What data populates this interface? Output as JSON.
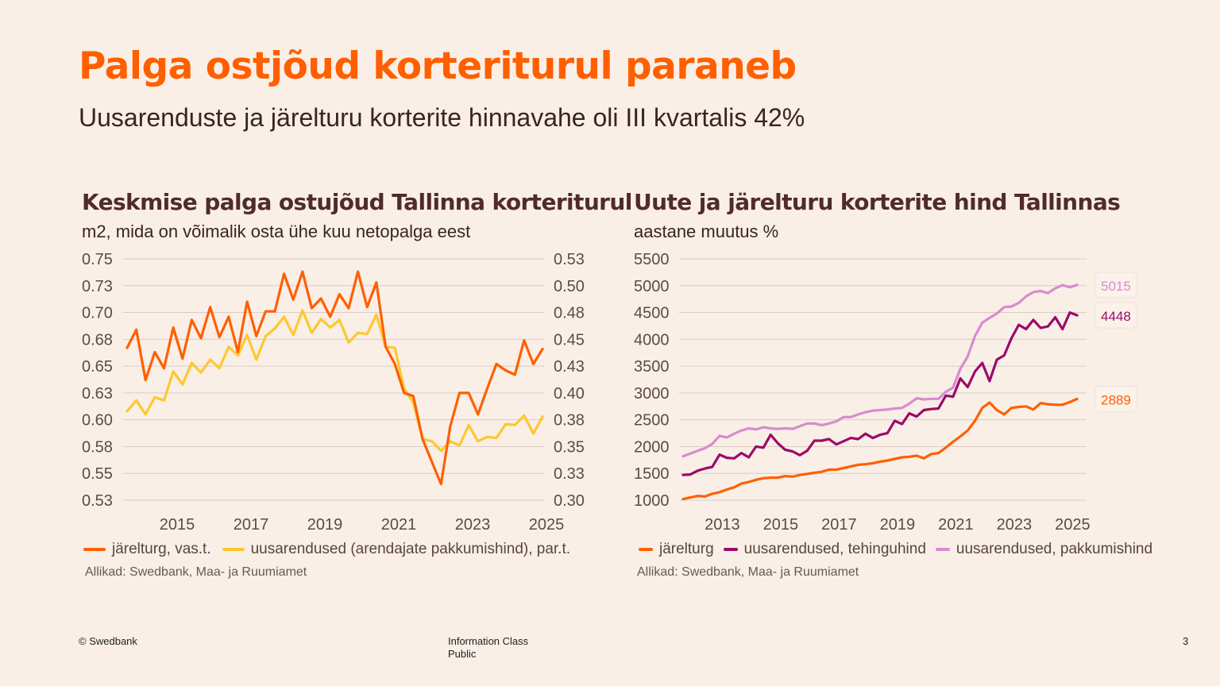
{
  "slide": {
    "title": "Palga ostjõud korteriturul paraneb",
    "subtitle": "Uusarenduste ja järelturu korterite hinnavahe oli III kvartalis 42%",
    "footer_left": "© Swedbank",
    "footer_center_line1": "Information Class",
    "footer_center_line2": "Public",
    "page_number": "3"
  },
  "colors": {
    "title": "#ff5f00",
    "jarelturg": "#ff5f00",
    "uusarendused_left": "#fdc82f",
    "tehinguhind": "#9b0a6b",
    "pakkumishind": "#d98bd0"
  },
  "chart_data": [
    {
      "type": "line",
      "title": "Keskmise palga ostujõud Tallinna korterituruI",
      "subtitle": "m2, mida on võimalik osta ühe kuu netopalga eest",
      "source": "Allikad: Swedbank, Maa- ja Ruumiamet",
      "frequency": "quarterly",
      "grid": true,
      "legend_position": "bottom",
      "x_ticks": [
        "2015",
        "2017",
        "2019",
        "2021",
        "2023",
        "2025"
      ],
      "y_left": {
        "ylim": [
          0.525,
          0.75
        ],
        "ticks": [
          0.525,
          0.55,
          0.575,
          0.6,
          0.625,
          0.65,
          0.675,
          0.7,
          0.725,
          0.75
        ],
        "tick_labels": [
          "0.53",
          "0.55",
          "0.58",
          "0.60",
          "0.63",
          "0.65",
          "0.68",
          "0.70",
          "0.73",
          "0.75"
        ]
      },
      "y_right": {
        "ylim": [
          0.3,
          0.525
        ],
        "ticks": [
          0.3,
          0.325,
          0.35,
          0.375,
          0.4,
          0.425,
          0.45,
          0.475,
          0.5,
          0.525
        ],
        "tick_labels": [
          "0.30",
          "0.33",
          "0.35",
          "0.38",
          "0.40",
          "0.43",
          "0.45",
          "0.48",
          "0.50",
          "0.53"
        ]
      },
      "x": [
        "2014Q1",
        "2014Q2",
        "2014Q3",
        "2014Q4",
        "2015Q1",
        "2015Q2",
        "2015Q3",
        "2015Q4",
        "2016Q1",
        "2016Q2",
        "2016Q3",
        "2016Q4",
        "2017Q1",
        "2017Q2",
        "2017Q3",
        "2017Q4",
        "2018Q1",
        "2018Q2",
        "2018Q3",
        "2018Q4",
        "2019Q1",
        "2019Q2",
        "2019Q3",
        "2019Q4",
        "2020Q1",
        "2020Q2",
        "2020Q3",
        "2020Q4",
        "2021Q1",
        "2021Q2",
        "2021Q3",
        "2021Q4",
        "2022Q1",
        "2022Q2",
        "2022Q3",
        "2022Q4",
        "2023Q1",
        "2023Q2",
        "2023Q3",
        "2023Q4",
        "2024Q1",
        "2024Q2",
        "2024Q3",
        "2024Q4",
        "2025Q1",
        "2025Q2"
      ],
      "series": [
        {
          "name": "järelturg, vas.t.",
          "axis": "left",
          "color": "#ff5f00",
          "values": [
            0.667,
            0.684,
            0.637,
            0.663,
            0.648,
            0.686,
            0.657,
            0.693,
            0.676,
            0.705,
            0.677,
            0.696,
            0.663,
            0.71,
            0.678,
            0.701,
            0.701,
            0.736,
            0.712,
            0.738,
            0.704,
            0.713,
            0.696,
            0.717,
            0.704,
            0.738,
            0.705,
            0.728,
            0.668,
            0.652,
            0.625,
            0.622,
            0.582,
            0.561,
            0.54,
            0.594,
            0.625,
            0.625,
            0.605,
            0.629,
            0.652,
            0.646,
            0.642,
            0.674,
            0.652,
            0.666
          ]
        },
        {
          "name": "uusarendused (arendajate pakkumishind), par.t.",
          "axis": "right",
          "color": "#fdc82f",
          "values": [
            0.383,
            0.393,
            0.38,
            0.396,
            0.393,
            0.42,
            0.408,
            0.428,
            0.419,
            0.431,
            0.423,
            0.443,
            0.435,
            0.454,
            0.431,
            0.453,
            0.46,
            0.471,
            0.454,
            0.477,
            0.456,
            0.469,
            0.461,
            0.468,
            0.447,
            0.456,
            0.455,
            0.473,
            0.443,
            0.442,
            0.404,
            0.391,
            0.357,
            0.355,
            0.346,
            0.355,
            0.351,
            0.37,
            0.355,
            0.359,
            0.358,
            0.371,
            0.37,
            0.379,
            0.362,
            0.378
          ]
        }
      ]
    },
    {
      "type": "line",
      "title": "Uute ja järelturu korterite hind Tallinnas",
      "subtitle": "aastane muutus %",
      "source": "Allikad: Swedbank, Maa- ja Ruumiamet",
      "frequency": "quarterly",
      "grid": true,
      "legend_position": "bottom",
      "x_ticks": [
        "2013",
        "2015",
        "2017",
        "2019",
        "2021",
        "2023",
        "2025"
      ],
      "y_left": {
        "ylim": [
          1000,
          5500
        ],
        "ticks": [
          1000,
          1500,
          2000,
          2500,
          3000,
          3500,
          4000,
          4500,
          5000,
          5500
        ],
        "tick_labels": [
          "1000",
          "1500",
          "2000",
          "2500",
          "3000",
          "3500",
          "4000",
          "4500",
          "5000",
          "5500"
        ]
      },
      "x": [
        "2012Q1",
        "2012Q2",
        "2012Q3",
        "2012Q4",
        "2013Q1",
        "2013Q2",
        "2013Q3",
        "2013Q4",
        "2014Q1",
        "2014Q2",
        "2014Q3",
        "2014Q4",
        "2015Q1",
        "2015Q2",
        "2015Q3",
        "2015Q4",
        "2016Q1",
        "2016Q2",
        "2016Q3",
        "2016Q4",
        "2017Q1",
        "2017Q2",
        "2017Q3",
        "2017Q4",
        "2018Q1",
        "2018Q2",
        "2018Q3",
        "2018Q4",
        "2019Q1",
        "2019Q2",
        "2019Q3",
        "2019Q4",
        "2020Q1",
        "2020Q2",
        "2020Q3",
        "2020Q4",
        "2021Q1",
        "2021Q2",
        "2021Q3",
        "2021Q4",
        "2022Q1",
        "2022Q2",
        "2022Q3",
        "2022Q4",
        "2023Q1",
        "2023Q2",
        "2023Q3",
        "2023Q4",
        "2024Q1",
        "2024Q2",
        "2024Q3",
        "2024Q4",
        "2025Q1",
        "2025Q2",
        "2025Q3"
      ],
      "series": [
        {
          "name": "järelturg",
          "axis": "left",
          "color": "#ff5f00",
          "end_label": "2889",
          "values": [
            1020,
            1050,
            1080,
            1070,
            1120,
            1150,
            1200,
            1240,
            1310,
            1340,
            1380,
            1410,
            1420,
            1420,
            1450,
            1440,
            1470,
            1490,
            1510,
            1530,
            1570,
            1570,
            1600,
            1630,
            1660,
            1670,
            1690,
            1720,
            1740,
            1770,
            1800,
            1810,
            1830,
            1780,
            1860,
            1880,
            1980,
            2090,
            2190,
            2300,
            2480,
            2720,
            2820,
            2680,
            2600,
            2720,
            2740,
            2750,
            2690,
            2810,
            2790,
            2780,
            2780,
            2830,
            2889
          ]
        },
        {
          "name": "uusarendused, tehinguhind",
          "axis": "left",
          "color": "#9b0a6b",
          "end_label": "4448",
          "values": [
            1470,
            1480,
            1550,
            1590,
            1620,
            1850,
            1790,
            1780,
            1880,
            1800,
            2000,
            1980,
            2220,
            2060,
            1940,
            1910,
            1840,
            1920,
            2110,
            2110,
            2140,
            2040,
            2100,
            2160,
            2140,
            2240,
            2160,
            2220,
            2250,
            2480,
            2420,
            2620,
            2560,
            2680,
            2700,
            2710,
            2950,
            2930,
            3270,
            3110,
            3400,
            3560,
            3220,
            3620,
            3700,
            4020,
            4270,
            4190,
            4360,
            4210,
            4240,
            4410,
            4190,
            4500,
            4448
          ]
        },
        {
          "name": "uusarendused, pakkumishind",
          "axis": "left",
          "color": "#d98bd0",
          "end_label": "5015",
          "values": [
            1820,
            1870,
            1920,
            1970,
            2050,
            2200,
            2170,
            2240,
            2300,
            2340,
            2320,
            2360,
            2340,
            2330,
            2340,
            2330,
            2380,
            2430,
            2430,
            2400,
            2430,
            2470,
            2550,
            2550,
            2600,
            2640,
            2670,
            2680,
            2690,
            2710,
            2720,
            2800,
            2900,
            2880,
            2890,
            2890,
            3020,
            3100,
            3450,
            3680,
            4060,
            4310,
            4400,
            4480,
            4600,
            4610,
            4680,
            4800,
            4880,
            4900,
            4860,
            4950,
            5010,
            4970,
            5015
          ]
        }
      ]
    }
  ]
}
